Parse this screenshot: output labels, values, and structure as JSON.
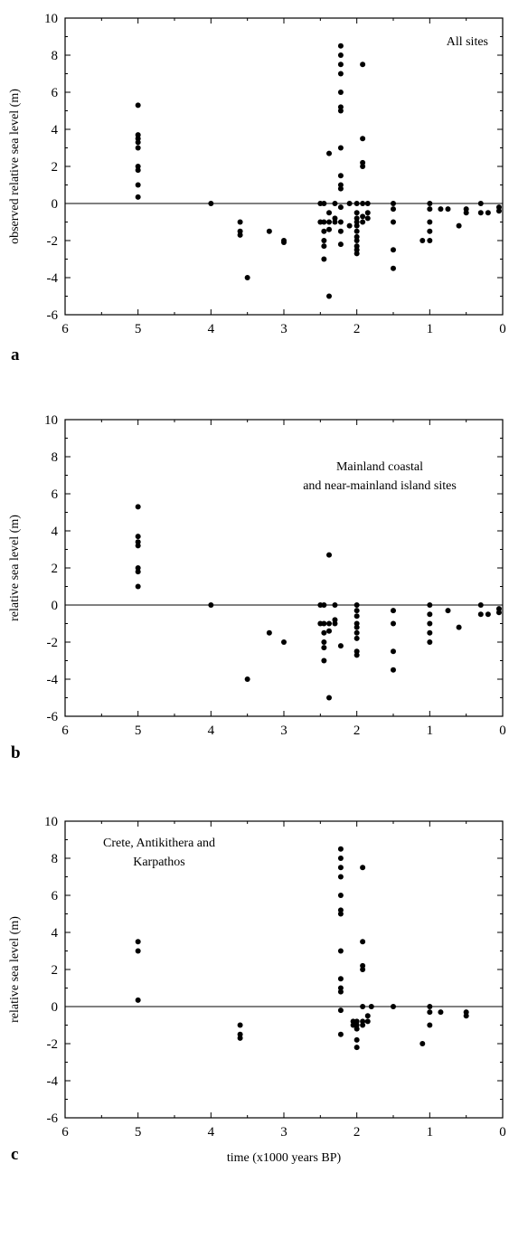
{
  "figure": {
    "xlabel": "time (x1000 years BP)"
  },
  "chart_data": [
    {
      "type": "scatter",
      "panel": "a",
      "annotation": [
        "All sites"
      ],
      "ylabel": "observed relative sea level (m)",
      "xlabel": "",
      "xlim": [
        6,
        0
      ],
      "ylim": [
        -6,
        10
      ],
      "x_ticks": [
        6,
        5,
        4,
        3,
        2,
        1,
        0
      ],
      "y_ticks": [
        10,
        8,
        6,
        4,
        2,
        0,
        -2,
        -4,
        -6
      ],
      "reference_line_y": 0,
      "points": [
        [
          5,
          5.3
        ],
        [
          5,
          3.7
        ],
        [
          5,
          3.5
        ],
        [
          5,
          3.3
        ],
        [
          5,
          3.0
        ],
        [
          5,
          2.0
        ],
        [
          5,
          1.8
        ],
        [
          5,
          1.0
        ],
        [
          5,
          0.35
        ],
        [
          4,
          0
        ],
        [
          3.6,
          -1.0
        ],
        [
          3.6,
          -1.5
        ],
        [
          3.6,
          -1.7
        ],
        [
          3.5,
          -4.0
        ],
        [
          3.2,
          -1.5
        ],
        [
          3.0,
          -2.0
        ],
        [
          3.0,
          -2.1
        ],
        [
          2.5,
          0
        ],
        [
          2.5,
          -1.0
        ],
        [
          2.45,
          0
        ],
        [
          2.45,
          -1.0
        ],
        [
          2.45,
          -1.5
        ],
        [
          2.45,
          -2.0
        ],
        [
          2.45,
          -2.3
        ],
        [
          2.45,
          -3.0
        ],
        [
          2.38,
          2.7
        ],
        [
          2.38,
          -0.5
        ],
        [
          2.38,
          -1.0
        ],
        [
          2.38,
          -1.4
        ],
        [
          2.38,
          -5.0
        ],
        [
          2.3,
          0
        ],
        [
          2.3,
          -0.8
        ],
        [
          2.3,
          -1.0
        ],
        [
          2.22,
          8.5
        ],
        [
          2.22,
          8.0
        ],
        [
          2.22,
          7.5
        ],
        [
          2.22,
          7.0
        ],
        [
          2.22,
          6.0
        ],
        [
          2.22,
          5.2
        ],
        [
          2.22,
          5.0
        ],
        [
          2.22,
          3.0
        ],
        [
          2.22,
          1.5
        ],
        [
          2.22,
          1.0
        ],
        [
          2.22,
          0.8
        ],
        [
          2.22,
          -0.2
        ],
        [
          2.22,
          -1.0
        ],
        [
          2.22,
          -1.5
        ],
        [
          2.22,
          -2.2
        ],
        [
          2.1,
          0
        ],
        [
          2.1,
          -1.2
        ],
        [
          2.0,
          0
        ],
        [
          2.0,
          -0.5
        ],
        [
          2.0,
          -0.8
        ],
        [
          2.0,
          -1.0
        ],
        [
          2.0,
          -1.2
        ],
        [
          2.0,
          -1.5
        ],
        [
          2.0,
          -1.8
        ],
        [
          2.0,
          -2.0
        ],
        [
          2.0,
          -2.3
        ],
        [
          2.0,
          -2.5
        ],
        [
          2.0,
          -2.7
        ],
        [
          1.92,
          7.5
        ],
        [
          1.92,
          3.5
        ],
        [
          1.92,
          2.2
        ],
        [
          1.92,
          2.0
        ],
        [
          1.92,
          0
        ],
        [
          1.92,
          -0.7
        ],
        [
          1.92,
          -1.0
        ],
        [
          1.85,
          0
        ],
        [
          1.85,
          -0.5
        ],
        [
          1.85,
          -0.8
        ],
        [
          1.5,
          0
        ],
        [
          1.5,
          -0.3
        ],
        [
          1.5,
          -1.0
        ],
        [
          1.5,
          -2.5
        ],
        [
          1.5,
          -3.5
        ],
        [
          1.1,
          -2.0
        ],
        [
          1.0,
          0
        ],
        [
          1.0,
          -0.3
        ],
        [
          1.0,
          -1.0
        ],
        [
          1.0,
          -1.5
        ],
        [
          1.0,
          -2.0
        ],
        [
          0.85,
          -0.3
        ],
        [
          0.75,
          -0.3
        ],
        [
          0.6,
          -1.2
        ],
        [
          0.5,
          -0.3
        ],
        [
          0.5,
          -0.5
        ],
        [
          0.3,
          0
        ],
        [
          0.3,
          -0.5
        ],
        [
          0.2,
          -0.5
        ],
        [
          0.05,
          -0.2
        ],
        [
          0.05,
          -0.4
        ]
      ]
    },
    {
      "type": "scatter",
      "panel": "b",
      "annotation": [
        "Mainland coastal",
        "and near-mainland island sites"
      ],
      "ylabel": "relative sea level (m)",
      "xlabel": "",
      "xlim": [
        6,
        0
      ],
      "ylim": [
        -6,
        10
      ],
      "x_ticks": [
        6,
        5,
        4,
        3,
        2,
        1,
        0
      ],
      "y_ticks": [
        10,
        8,
        6,
        4,
        2,
        0,
        -2,
        -4,
        -6
      ],
      "reference_line_y": 0,
      "points": [
        [
          5,
          5.3
        ],
        [
          5,
          3.7
        ],
        [
          5,
          3.4
        ],
        [
          5,
          3.2
        ],
        [
          5,
          2.0
        ],
        [
          5,
          1.8
        ],
        [
          5,
          1.0
        ],
        [
          4,
          0
        ],
        [
          3.5,
          -4.0
        ],
        [
          3.2,
          -1.5
        ],
        [
          3.0,
          -2.0
        ],
        [
          2.5,
          0
        ],
        [
          2.5,
          -1.0
        ],
        [
          2.45,
          0
        ],
        [
          2.45,
          -1.0
        ],
        [
          2.45,
          -1.5
        ],
        [
          2.45,
          -2.0
        ],
        [
          2.45,
          -2.3
        ],
        [
          2.45,
          -3.0
        ],
        [
          2.38,
          2.7
        ],
        [
          2.38,
          -1.0
        ],
        [
          2.38,
          -1.4
        ],
        [
          2.38,
          -5.0
        ],
        [
          2.3,
          0
        ],
        [
          2.3,
          -0.8
        ],
        [
          2.3,
          -1.0
        ],
        [
          2.22,
          -2.2
        ],
        [
          2.0,
          0
        ],
        [
          2.0,
          -0.3
        ],
        [
          2.0,
          -0.6
        ],
        [
          2.0,
          -1.0
        ],
        [
          2.0,
          -1.2
        ],
        [
          2.0,
          -1.5
        ],
        [
          2.0,
          -1.8
        ],
        [
          2.0,
          -2.5
        ],
        [
          2.0,
          -2.7
        ],
        [
          1.5,
          -0.3
        ],
        [
          1.5,
          -1.0
        ],
        [
          1.5,
          -2.5
        ],
        [
          1.5,
          -3.5
        ],
        [
          1.0,
          0
        ],
        [
          1.0,
          -0.5
        ],
        [
          1.0,
          -1.0
        ],
        [
          1.0,
          -1.5
        ],
        [
          1.0,
          -2.0
        ],
        [
          0.75,
          -0.3
        ],
        [
          0.6,
          -1.2
        ],
        [
          0.3,
          0
        ],
        [
          0.3,
          -0.5
        ],
        [
          0.2,
          -0.5
        ],
        [
          0.05,
          -0.2
        ],
        [
          0.05,
          -0.4
        ]
      ]
    },
    {
      "type": "scatter",
      "panel": "c",
      "annotation": [
        "Crete, Antikithera and",
        "Karpathos"
      ],
      "ylabel": "relative sea level (m)",
      "xlabel": "time (x1000 years BP)",
      "xlim": [
        6,
        0
      ],
      "ylim": [
        -6,
        10
      ],
      "x_ticks": [
        6,
        5,
        4,
        3,
        2,
        1,
        0
      ],
      "y_ticks": [
        10,
        8,
        6,
        4,
        2,
        0,
        -2,
        -4,
        -6
      ],
      "reference_line_y": 0,
      "points": [
        [
          5,
          3.5
        ],
        [
          5,
          3.0
        ],
        [
          5,
          0.35
        ],
        [
          3.6,
          -1.0
        ],
        [
          3.6,
          -1.5
        ],
        [
          3.6,
          -1.7
        ],
        [
          2.22,
          8.5
        ],
        [
          2.22,
          8.0
        ],
        [
          2.22,
          7.5
        ],
        [
          2.22,
          7.0
        ],
        [
          2.22,
          6.0
        ],
        [
          2.22,
          5.2
        ],
        [
          2.22,
          5.0
        ],
        [
          2.22,
          3.0
        ],
        [
          2.22,
          1.5
        ],
        [
          2.22,
          1.0
        ],
        [
          2.22,
          0.8
        ],
        [
          2.22,
          -0.2
        ],
        [
          2.22,
          -1.5
        ],
        [
          2.05,
          -0.8
        ],
        [
          2.05,
          -1.0
        ],
        [
          2.0,
          -0.8
        ],
        [
          2.0,
          -1.0
        ],
        [
          2.0,
          -1.2
        ],
        [
          2.0,
          -1.8
        ],
        [
          2.0,
          -2.2
        ],
        [
          1.92,
          7.5
        ],
        [
          1.92,
          3.5
        ],
        [
          1.92,
          2.2
        ],
        [
          1.92,
          2.0
        ],
        [
          1.92,
          0
        ],
        [
          1.92,
          -0.8
        ],
        [
          1.92,
          -1.0
        ],
        [
          1.85,
          -0.5
        ],
        [
          1.85,
          -0.8
        ],
        [
          1.8,
          0
        ],
        [
          1.5,
          0
        ],
        [
          1.1,
          -2.0
        ],
        [
          1.0,
          0
        ],
        [
          1.0,
          -0.3
        ],
        [
          1.0,
          -1.0
        ],
        [
          0.85,
          -0.3
        ],
        [
          0.5,
          -0.3
        ],
        [
          0.5,
          -0.5
        ]
      ]
    }
  ]
}
